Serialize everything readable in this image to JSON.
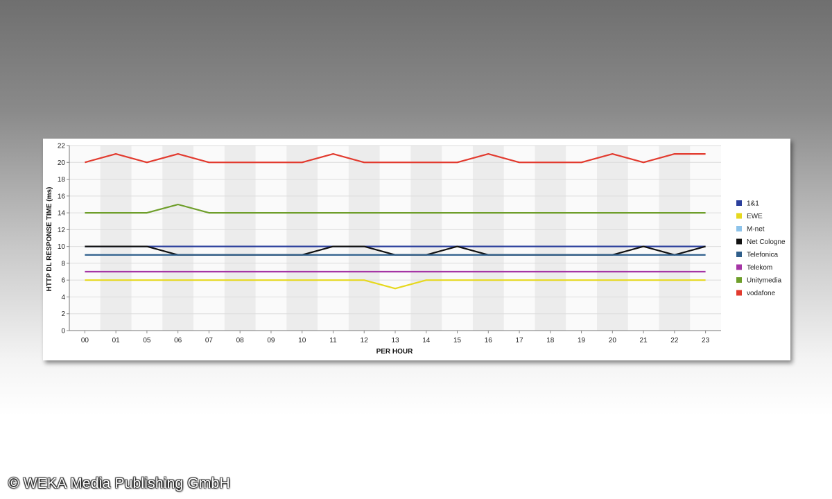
{
  "chart_data": {
    "type": "line",
    "title": "",
    "xlabel": "PER HOUR",
    "ylabel": "HTTP DL RESPONSE TIME (ms)",
    "ylim": [
      0,
      22
    ],
    "yticks": [
      0,
      2,
      4,
      6,
      8,
      10,
      12,
      14,
      16,
      18,
      20,
      22
    ],
    "categories": [
      "00",
      "01",
      "05",
      "06",
      "07",
      "08",
      "09",
      "10",
      "11",
      "12",
      "13",
      "14",
      "15",
      "16",
      "17",
      "18",
      "19",
      "20",
      "21",
      "22",
      "23"
    ],
    "grid": true,
    "legend_position": "right",
    "series": [
      {
        "name": "1&1",
        "color": "#2b3f9c",
        "values": [
          10,
          10,
          10,
          10,
          10,
          10,
          10,
          10,
          10,
          10,
          10,
          10,
          10,
          10,
          10,
          10,
          10,
          10,
          10,
          10,
          10
        ]
      },
      {
        "name": "EWE",
        "color": "#e6d81e",
        "values": [
          6,
          6,
          6,
          6,
          6,
          6,
          6,
          6,
          6,
          6,
          5,
          6,
          6,
          6,
          6,
          6,
          6,
          6,
          6,
          6,
          6
        ]
      },
      {
        "name": "M-net",
        "color": "#8dc3ea",
        "values": [
          9,
          9,
          9,
          9,
          9,
          9,
          9,
          9,
          9,
          9,
          9,
          9,
          9,
          9,
          9,
          9,
          9,
          9,
          9,
          9,
          9
        ]
      },
      {
        "name": "Net Cologne",
        "color": "#111111",
        "values": [
          10,
          10,
          10,
          9,
          9,
          9,
          9,
          9,
          10,
          10,
          9,
          9,
          10,
          9,
          9,
          9,
          9,
          9,
          10,
          9,
          10
        ]
      },
      {
        "name": "Telefonica",
        "color": "#2f5e8a",
        "values": [
          9,
          9,
          9,
          9,
          9,
          9,
          9,
          9,
          9,
          9,
          9,
          9,
          9,
          9,
          9,
          9,
          9,
          9,
          9,
          9,
          9
        ]
      },
      {
        "name": "Telekom",
        "color": "#a535a5",
        "values": [
          7,
          7,
          7,
          7,
          7,
          7,
          7,
          7,
          7,
          7,
          7,
          7,
          7,
          7,
          7,
          7,
          7,
          7,
          7,
          7,
          7
        ]
      },
      {
        "name": "Unitymedia",
        "color": "#6e9e2a",
        "values": [
          14,
          14,
          14,
          15,
          14,
          14,
          14,
          14,
          14,
          14,
          14,
          14,
          14,
          14,
          14,
          14,
          14,
          14,
          14,
          14,
          14
        ]
      },
      {
        "name": "vodafone",
        "color": "#e23a2e",
        "values": [
          20,
          21,
          20,
          21,
          20,
          20,
          20,
          20,
          21,
          20,
          20,
          20,
          20,
          21,
          20,
          20,
          20,
          21,
          20,
          21,
          21
        ]
      }
    ]
  },
  "watermark": "© WEKA Media Publishing GmbH"
}
